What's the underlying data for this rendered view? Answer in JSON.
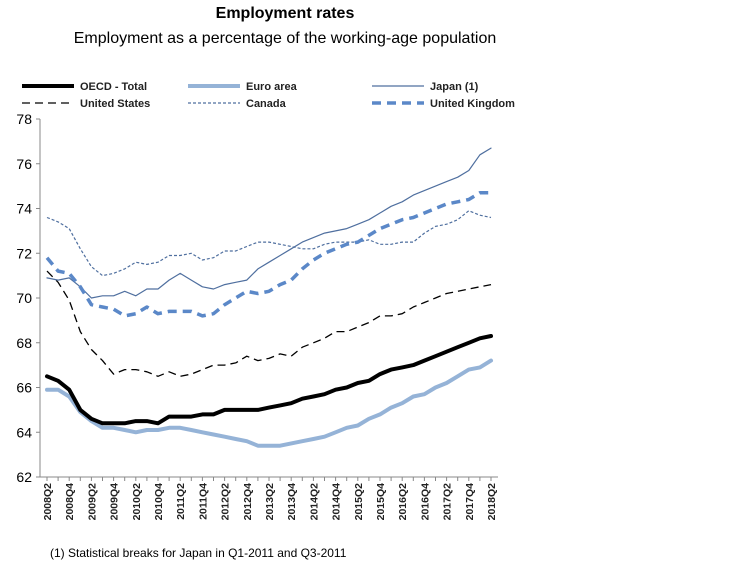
{
  "chart_data": {
    "type": "line",
    "title": "Employment rates",
    "subtitle": "Employment as a percentage of the working-age population",
    "xlabel": "",
    "ylabel": "",
    "ylim": [
      62,
      78
    ],
    "yticks": [
      62,
      64,
      66,
      68,
      70,
      72,
      74,
      76,
      78
    ],
    "categories": [
      "2008Q2",
      "2008Q3",
      "2008Q4",
      "2009Q1",
      "2009Q2",
      "2009Q3",
      "2009Q4",
      "2010Q1",
      "2010Q2",
      "2010Q3",
      "2010Q4",
      "2011Q1",
      "2011Q2",
      "2011Q3",
      "2011Q4",
      "2012Q1",
      "2012Q2",
      "2012Q3",
      "2012Q4",
      "2013Q1",
      "2013Q2",
      "2013Q3",
      "2013Q4",
      "2014Q1",
      "2014Q2",
      "2014Q3",
      "2014Q4",
      "2015Q1",
      "2015Q2",
      "2015Q3",
      "2015Q4",
      "2016Q1",
      "2016Q2",
      "2016Q3",
      "2016Q4",
      "2017Q1",
      "2017Q2",
      "2017Q3",
      "2017Q4",
      "2018Q1",
      "2018Q2"
    ],
    "xtick_labels": [
      "2008Q2",
      "2008Q4",
      "2009Q2",
      "2009Q4",
      "2010Q2",
      "2010Q4",
      "2011Q2",
      "2011Q4",
      "2012Q2",
      "2012Q4",
      "2013Q2",
      "2013Q4",
      "2014Q2",
      "2014Q4",
      "2015Q2",
      "2015Q4",
      "2016Q2",
      "2016Q4",
      "2017Q2",
      "2017Q4",
      "2018Q2"
    ],
    "legend_placement": "top",
    "series": [
      {
        "name": "OECD - Total",
        "color": "#000000",
        "style": "solid-thick",
        "values": [
          66.5,
          66.3,
          65.9,
          65.0,
          64.6,
          64.4,
          64.4,
          64.4,
          64.5,
          64.5,
          64.4,
          64.7,
          64.7,
          64.7,
          64.8,
          64.8,
          65.0,
          65.0,
          65.0,
          65.0,
          65.1,
          65.2,
          65.3,
          65.5,
          65.6,
          65.7,
          65.9,
          66.0,
          66.2,
          66.3,
          66.6,
          66.8,
          66.9,
          67.0,
          67.2,
          67.4,
          67.6,
          67.8,
          68.0,
          68.2,
          68.3
        ]
      },
      {
        "name": "Euro area",
        "color": "#95b3d7",
        "style": "solid-thick",
        "values": [
          65.9,
          65.9,
          65.6,
          64.9,
          64.5,
          64.2,
          64.2,
          64.1,
          64.0,
          64.1,
          64.1,
          64.2,
          64.2,
          64.1,
          64.0,
          63.9,
          63.8,
          63.7,
          63.6,
          63.4,
          63.4,
          63.4,
          63.5,
          63.6,
          63.7,
          63.8,
          64.0,
          64.2,
          64.3,
          64.6,
          64.8,
          65.1,
          65.3,
          65.6,
          65.7,
          66.0,
          66.2,
          66.5,
          66.8,
          66.9,
          67.2
        ]
      },
      {
        "name": "Japan (1)",
        "color": "#4f6f9f",
        "style": "solid-thin",
        "values": [
          70.9,
          70.8,
          70.9,
          70.5,
          70.0,
          70.1,
          70.1,
          70.3,
          70.1,
          70.4,
          70.4,
          70.8,
          71.1,
          70.8,
          70.5,
          70.4,
          70.6,
          70.7,
          70.8,
          71.3,
          71.6,
          71.9,
          72.2,
          72.5,
          72.7,
          72.9,
          73.0,
          73.1,
          73.3,
          73.5,
          73.8,
          74.1,
          74.3,
          74.6,
          74.8,
          75.0,
          75.2,
          75.4,
          75.7,
          76.4,
          76.7
        ]
      },
      {
        "name": "United States",
        "color": "#000000",
        "style": "dashed",
        "values": [
          71.2,
          70.7,
          69.9,
          68.5,
          67.7,
          67.2,
          66.6,
          66.8,
          66.8,
          66.7,
          66.5,
          66.7,
          66.5,
          66.6,
          66.8,
          67.0,
          67.0,
          67.1,
          67.4,
          67.2,
          67.3,
          67.5,
          67.4,
          67.8,
          68.0,
          68.2,
          68.5,
          68.5,
          68.7,
          68.9,
          69.2,
          69.2,
          69.3,
          69.6,
          69.8,
          70.0,
          70.2,
          70.3,
          70.4,
          70.5,
          70.6
        ]
      },
      {
        "name": "Canada",
        "color": "#4f6f9f",
        "style": "dotted",
        "values": [
          73.6,
          73.4,
          73.1,
          72.2,
          71.4,
          71.0,
          71.1,
          71.3,
          71.6,
          71.5,
          71.6,
          71.9,
          71.9,
          72.0,
          71.7,
          71.8,
          72.1,
          72.1,
          72.3,
          72.5,
          72.5,
          72.4,
          72.3,
          72.2,
          72.2,
          72.4,
          72.5,
          72.5,
          72.5,
          72.6,
          72.4,
          72.4,
          72.5,
          72.5,
          72.9,
          73.2,
          73.3,
          73.5,
          73.9,
          73.7,
          73.6
        ]
      },
      {
        "name": "United Kingdom",
        "color": "#5b88c8",
        "style": "dashed-thick",
        "values": [
          71.8,
          71.2,
          71.1,
          70.5,
          69.7,
          69.6,
          69.5,
          69.2,
          69.3,
          69.6,
          69.3,
          69.4,
          69.4,
          69.4,
          69.2,
          69.3,
          69.7,
          70.0,
          70.3,
          70.2,
          70.3,
          70.6,
          70.8,
          71.3,
          71.7,
          72.0,
          72.2,
          72.4,
          72.5,
          72.8,
          73.1,
          73.3,
          73.5,
          73.6,
          73.8,
          74.0,
          74.2,
          74.3,
          74.4,
          74.7,
          74.7
        ]
      }
    ]
  },
  "footnote": "(1) Statistical breaks for Japan in Q1-2011 and Q3-2011"
}
